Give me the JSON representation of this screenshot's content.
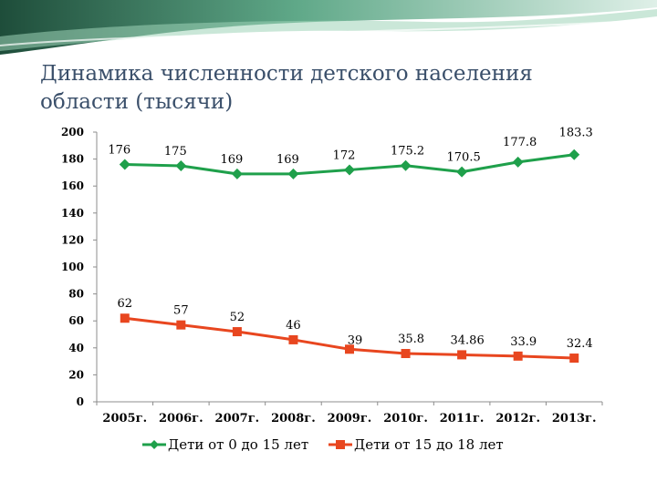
{
  "colors": {
    "series1": "#1fa04b",
    "series2": "#e8461f",
    "title": "#3a4f6a",
    "banner_dark": "#1e4d3a",
    "banner_light": "#8cc9a8"
  },
  "chart_data": {
    "type": "line",
    "title": "Динамика численности детского населения области (тысячи)",
    "categories": [
      "2005г.",
      "2006г.",
      "2007г.",
      "2008г.",
      "2009г.",
      "2010г.",
      "2011г.",
      "2012г.",
      "2013г."
    ],
    "series": [
      {
        "name": "Дети от 0 до 15 лет",
        "values": [
          176,
          175,
          169,
          169,
          172,
          175.2,
          170.5,
          177.8,
          183.3
        ],
        "labels": [
          "176",
          "175",
          "169",
          "169",
          "172",
          "175.2",
          "170.5",
          "177.8",
          "183.3"
        ],
        "marker": "diamond",
        "color": "#1fa04b"
      },
      {
        "name": "Дети от 15 до 18 лет",
        "values": [
          62,
          57,
          52,
          46,
          39,
          35.8,
          34.86,
          33.9,
          32.4
        ],
        "labels": [
          "62",
          "57",
          "52",
          "46",
          "39",
          "35.8",
          "34.86",
          "33.9",
          "32.4"
        ],
        "marker": "square",
        "color": "#e8461f"
      }
    ],
    "ylim": [
      0,
      200
    ],
    "yticks": [
      "0",
      "20",
      "40",
      "60",
      "80",
      "100",
      "120",
      "140",
      "160",
      "180",
      "200"
    ],
    "grid": false,
    "legend_position": "bottom"
  }
}
